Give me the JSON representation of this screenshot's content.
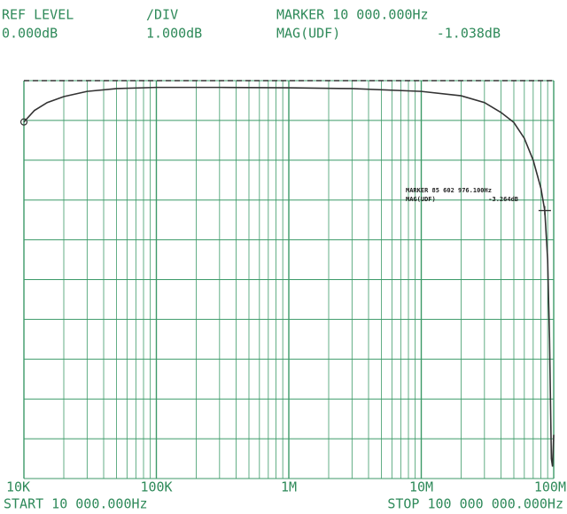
{
  "header": {
    "ref_level_label": "REF LEVEL",
    "ref_level_value": "0.000dB",
    "div_label": "/DIV",
    "div_value": "1.000dB",
    "marker_label": "MARKER 10 000.000Hz",
    "mag_label": "MAG(UDF)",
    "mag_value": "-1.038dB"
  },
  "footer": {
    "start": "START 10 000.000Hz",
    "stop": "STOP 100 000 000.000Hz"
  },
  "chart_data": {
    "type": "line",
    "xscale": "log",
    "grid": true,
    "color": "#333333",
    "x": [
      10000,
      12000,
      15000,
      20000,
      30000,
      50000,
      100000,
      300000,
      1000000,
      3000000,
      10000000,
      20000000,
      30000000,
      40000000,
      50000000,
      60000000,
      70000000,
      80000000,
      85602976.1,
      90000000,
      93000000,
      96000000,
      98000000,
      100000000
    ],
    "values": [
      -1.038,
      -0.75,
      -0.55,
      -0.4,
      -0.27,
      -0.2,
      -0.17,
      -0.17,
      -0.18,
      -0.2,
      -0.27,
      -0.38,
      -0.55,
      -0.8,
      -1.05,
      -1.45,
      -2.0,
      -2.7,
      -3.264,
      -4.5,
      -6.5,
      -9.5,
      -9.7,
      -8.9
    ],
    "xlim": [
      10000,
      100000000
    ],
    "ylim": [
      -10,
      0
    ],
    "xticks": [
      {
        "value": 10000,
        "label": "10K"
      },
      {
        "value": 100000,
        "label": "100K"
      },
      {
        "value": 1000000,
        "label": "1M"
      },
      {
        "value": 10000000,
        "label": "10M"
      },
      {
        "value": 100000000,
        "label": "100M"
      }
    ],
    "yticks": [
      0,
      -1,
      -2,
      -3,
      -4,
      -5,
      -6,
      -7,
      -8,
      -9,
      -10
    ],
    "markers": [
      {
        "x": 10000,
        "y": -1.038
      },
      {
        "x": 85602976.1,
        "y": -3.264,
        "label": "MARKER 85 602 976.100Hz",
        "mag_label": "MAG(UDF)",
        "mag_value": "-3.264dB"
      }
    ]
  }
}
